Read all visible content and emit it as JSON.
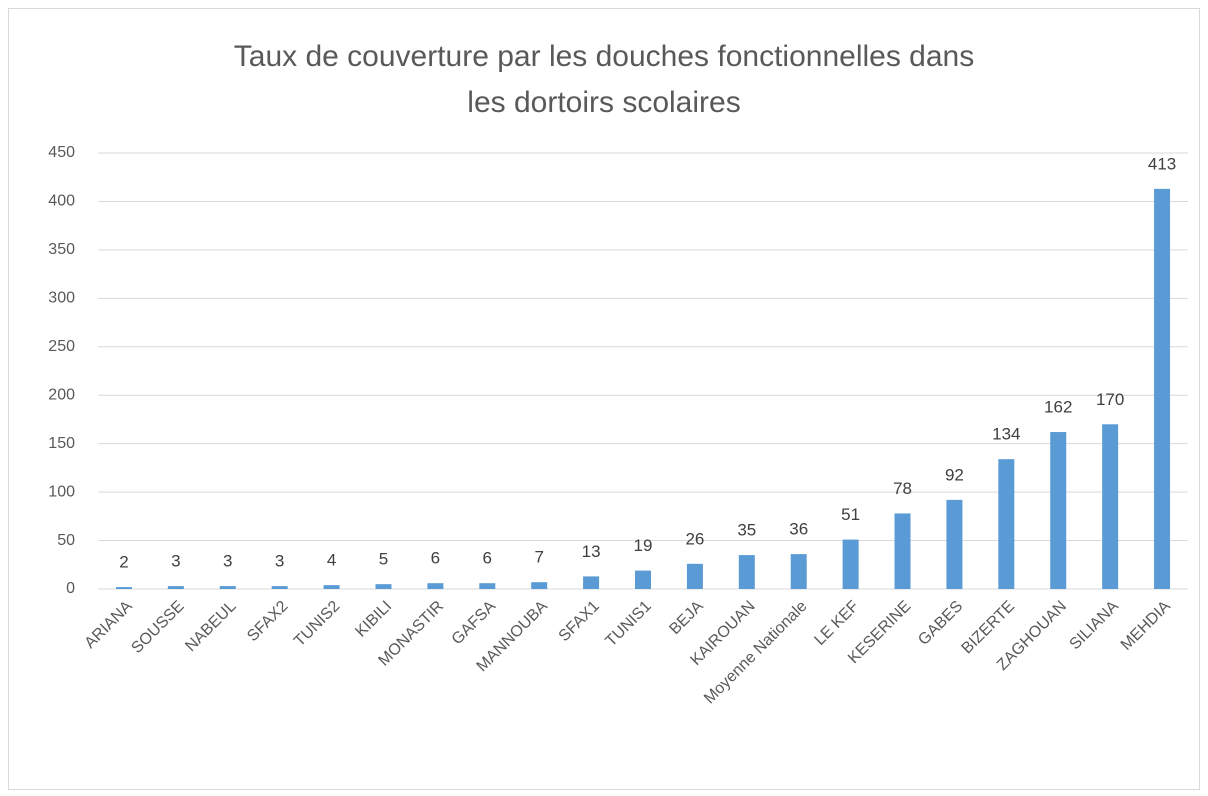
{
  "chart_data": {
    "type": "bar",
    "title": "Taux de couverture par les douches fonctionnelles dans les dortoirs scolaires",
    "categories": [
      "ARIANA",
      "SOUSSE",
      "NABEUL",
      "SFAX2",
      "TUNIS2",
      "KIBILI",
      "MONASTIR",
      "GAFSA",
      "MANNOUBA",
      "SFAX1",
      "TUNIS1",
      "BEJA",
      "KAIROUAN",
      "Moyenne Nationale",
      "LE KEF",
      "KESERINE",
      "GABES",
      "BIZERTE",
      "ZAGHOUAN",
      "SILIANA",
      "MEHDIA"
    ],
    "values": [
      2,
      3,
      3,
      3,
      4,
      5,
      6,
      6,
      7,
      13,
      19,
      26,
      35,
      36,
      51,
      78,
      92,
      134,
      162,
      170,
      413
    ],
    "color": "#5b9bd5",
    "ylim": [
      0,
      450
    ],
    "yticks": [
      0,
      50,
      100,
      150,
      200,
      250,
      300,
      350,
      400,
      450
    ],
    "grid": true
  }
}
